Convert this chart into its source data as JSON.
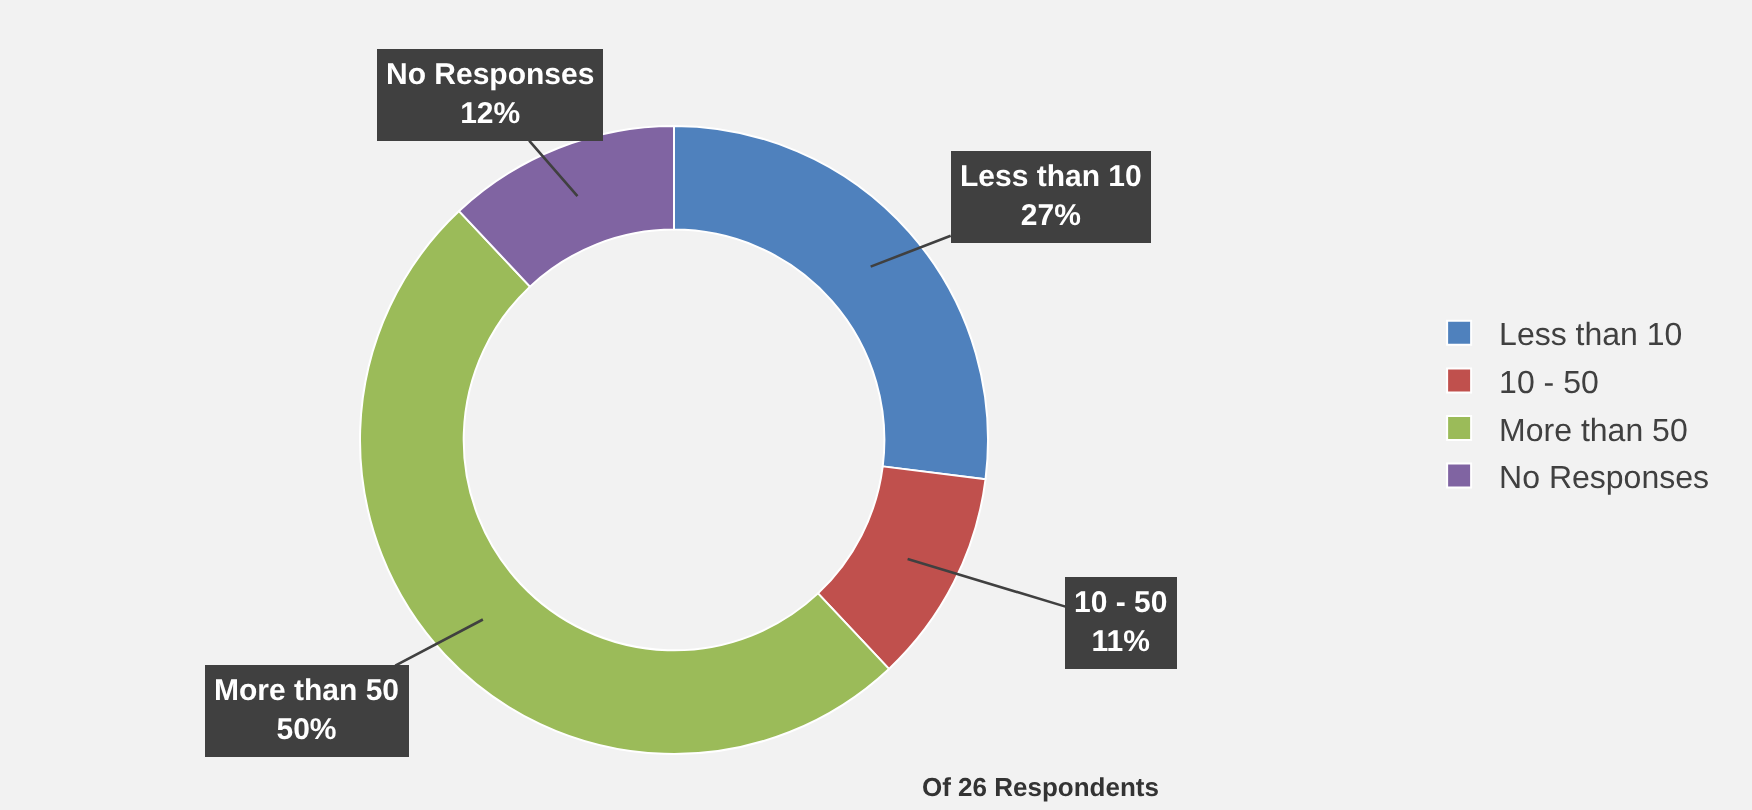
{
  "chart_data": {
    "type": "donut",
    "categories": [
      "Less than 10",
      "10 - 50",
      "More than 50",
      "No Responses"
    ],
    "values": [
      27,
      11,
      50,
      12
    ],
    "value_labels": [
      "27%",
      "11%",
      "50%",
      "12%"
    ],
    "colors": [
      "#4f81bd",
      "#c0504d",
      "#9bbb59",
      "#8064a2"
    ],
    "legend": "right",
    "annotations": [
      "Of 26 Respondents"
    ]
  }
}
